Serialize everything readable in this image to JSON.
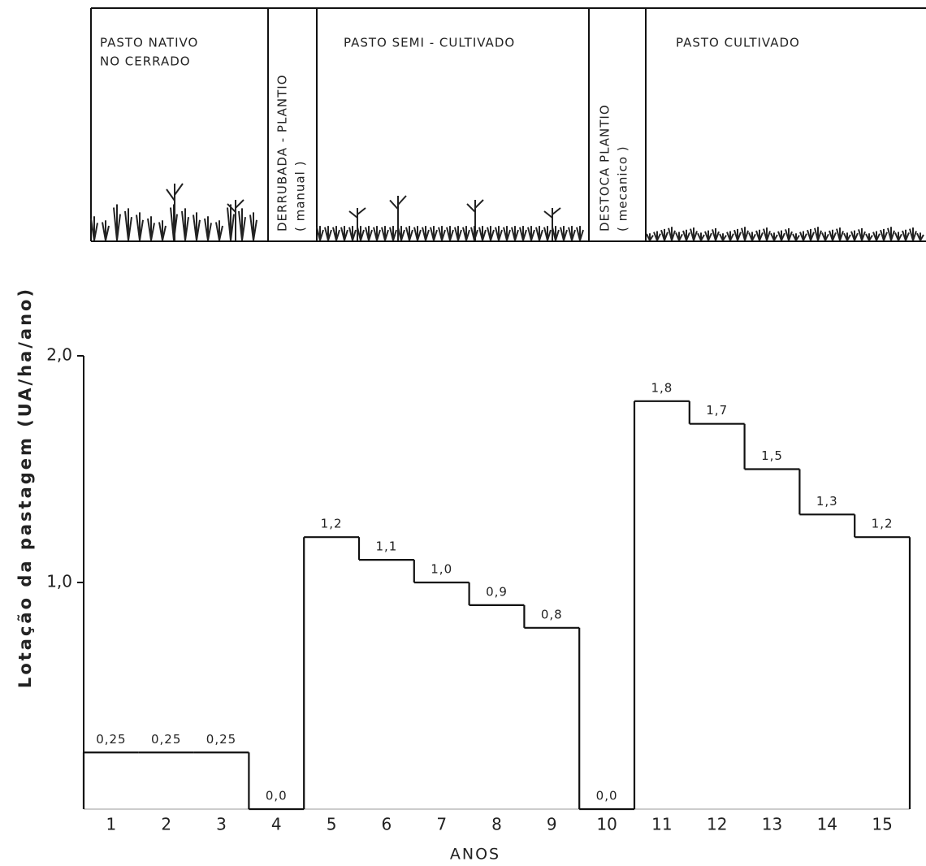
{
  "chart_data": {
    "type": "step",
    "y_label": "Lotação da pastagem (UA/ha/ano)",
    "x_label": "ANOS",
    "phases": [
      {
        "lines": [
          "PASTO NATIVO",
          "NO CERRADO"
        ]
      },
      {
        "lines": [
          "DERRUBADA - PLANTIO",
          "( manual )"
        ]
      },
      {
        "lines": [
          "PASTO SEMI - CULTIVADO"
        ]
      },
      {
        "lines": [
          "DESTOCA PLANTIO",
          "( mecanico )"
        ]
      },
      {
        "lines": [
          "PASTO CULTIVADO"
        ]
      }
    ],
    "categories": [
      "1",
      "2",
      "3",
      "4",
      "5",
      "6",
      "7",
      "8",
      "9",
      "10",
      "11",
      "12",
      "13",
      "14",
      "15"
    ],
    "values": [
      0.25,
      0.25,
      0.25,
      0,
      1.2,
      1.1,
      1.0,
      0.9,
      0.8,
      0,
      1.8,
      1.7,
      1.5,
      1.3,
      1.2
    ],
    "value_labels": [
      "0,25",
      "0,25",
      "0,25",
      "0,0",
      "1,2",
      "1,1",
      "1,0",
      "0,9",
      "0,8",
      "0,0",
      "1,8",
      "1,7",
      "1,5",
      "1,3",
      "1,2"
    ],
    "ylim": [
      0,
      2
    ],
    "yticks": [
      {
        "value": 1,
        "label": "1,0"
      },
      {
        "value": 2,
        "label": "2,0"
      }
    ],
    "color": "#111111"
  }
}
